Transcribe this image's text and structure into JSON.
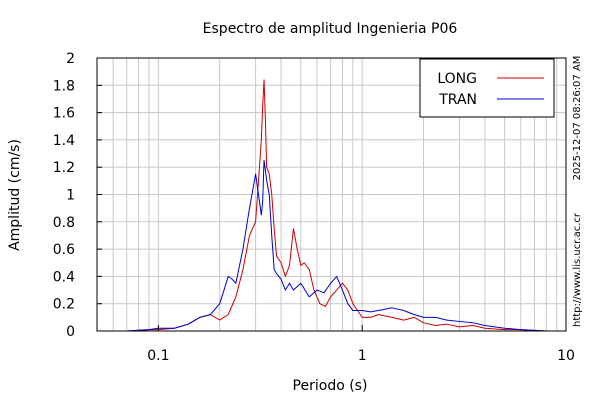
{
  "chart_data": {
    "type": "line",
    "title": "Espectro de amplitud Ingenieria P06",
    "xlabel": "Periodo (s)",
    "ylabel": "Amplitud (cm/s)",
    "x_scale": "log",
    "xlim": [
      0.05,
      10
    ],
    "ylim": [
      0,
      2
    ],
    "grid": true,
    "x_ticks": [
      {
        "value": 0.1,
        "label": "0.1"
      },
      {
        "value": 1,
        "label": "1"
      },
      {
        "value": 10,
        "label": "10"
      }
    ],
    "y_ticks": [
      {
        "value": 0,
        "label": "0"
      },
      {
        "value": 0.2,
        "label": "0.2"
      },
      {
        "value": 0.4,
        "label": "0.4"
      },
      {
        "value": 0.6,
        "label": "0.6"
      },
      {
        "value": 0.8,
        "label": "0.8"
      },
      {
        "value": 1,
        "label": "1"
      },
      {
        "value": 1.2,
        "label": "1.2"
      },
      {
        "value": 1.4,
        "label": "1.4"
      },
      {
        "value": 1.6,
        "label": "1.6"
      },
      {
        "value": 1.8,
        "label": "1.8"
      },
      {
        "value": 2,
        "label": "2"
      }
    ],
    "legend_position": "top-right",
    "side_texts": [
      "2025-12-07 08:26:07 AM",
      "http://www.lis.ucr.ac.cr"
    ],
    "series": [
      {
        "name": "LONG",
        "color": "#cc0000",
        "x": [
          0.05,
          0.07,
          0.09,
          0.1,
          0.12,
          0.14,
          0.16,
          0.18,
          0.2,
          0.22,
          0.24,
          0.26,
          0.28,
          0.3,
          0.31,
          0.32,
          0.325,
          0.33,
          0.335,
          0.34,
          0.35,
          0.36,
          0.37,
          0.38,
          0.4,
          0.42,
          0.44,
          0.46,
          0.48,
          0.5,
          0.52,
          0.55,
          0.58,
          0.62,
          0.66,
          0.7,
          0.75,
          0.8,
          0.85,
          0.9,
          1.0,
          1.1,
          1.2,
          1.4,
          1.6,
          1.8,
          2.0,
          2.3,
          2.6,
          3.0,
          3.5,
          4.0,
          5.0,
          6.0,
          8.0,
          10.0
        ],
        "y": [
          0.0,
          0.0,
          0.01,
          0.01,
          0.02,
          0.05,
          0.1,
          0.12,
          0.08,
          0.12,
          0.25,
          0.45,
          0.7,
          0.8,
          1.1,
          1.4,
          1.65,
          1.84,
          1.55,
          1.2,
          1.15,
          1.0,
          0.75,
          0.55,
          0.5,
          0.4,
          0.48,
          0.75,
          0.6,
          0.48,
          0.5,
          0.45,
          0.3,
          0.2,
          0.18,
          0.25,
          0.3,
          0.35,
          0.3,
          0.2,
          0.1,
          0.1,
          0.12,
          0.1,
          0.08,
          0.1,
          0.06,
          0.04,
          0.05,
          0.03,
          0.04,
          0.02,
          0.01,
          0.01,
          0.0,
          0.0
        ]
      },
      {
        "name": "TRAN",
        "color": "#0000cc",
        "x": [
          0.05,
          0.07,
          0.09,
          0.1,
          0.12,
          0.14,
          0.16,
          0.18,
          0.2,
          0.21,
          0.22,
          0.23,
          0.24,
          0.26,
          0.28,
          0.3,
          0.31,
          0.32,
          0.325,
          0.33,
          0.335,
          0.34,
          0.35,
          0.36,
          0.37,
          0.38,
          0.4,
          0.42,
          0.44,
          0.46,
          0.5,
          0.55,
          0.6,
          0.65,
          0.7,
          0.75,
          0.8,
          0.85,
          0.9,
          1.0,
          1.1,
          1.2,
          1.4,
          1.6,
          1.8,
          2.0,
          2.3,
          2.6,
          3.0,
          3.5,
          4.0,
          5.0,
          6.0,
          8.0,
          10.0
        ],
        "y": [
          0.0,
          0.0,
          0.01,
          0.02,
          0.02,
          0.05,
          0.1,
          0.12,
          0.2,
          0.3,
          0.4,
          0.38,
          0.35,
          0.6,
          0.9,
          1.15,
          1.0,
          0.85,
          0.95,
          1.25,
          1.18,
          1.1,
          1.0,
          0.7,
          0.45,
          0.42,
          0.38,
          0.3,
          0.35,
          0.3,
          0.35,
          0.25,
          0.3,
          0.28,
          0.35,
          0.4,
          0.3,
          0.2,
          0.15,
          0.15,
          0.14,
          0.15,
          0.17,
          0.15,
          0.12,
          0.1,
          0.1,
          0.08,
          0.07,
          0.06,
          0.04,
          0.02,
          0.01,
          0.0,
          0.0
        ]
      }
    ]
  }
}
